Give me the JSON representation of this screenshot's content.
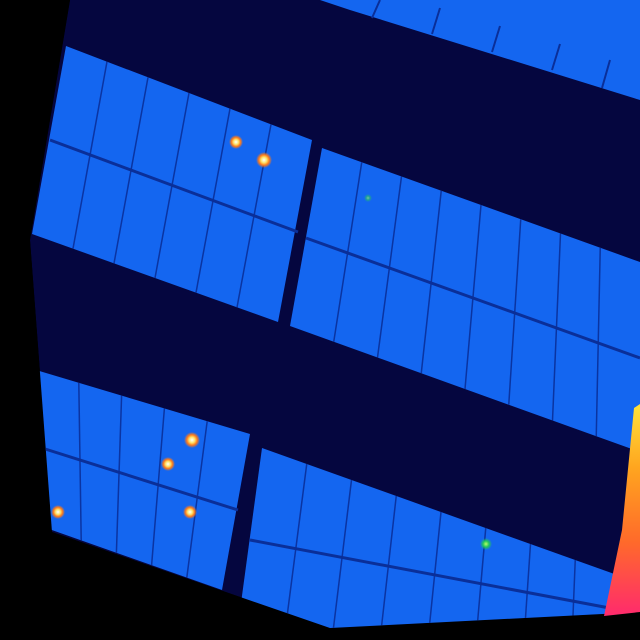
{
  "image": {
    "kind": "thermal aerial view of solar panel rows",
    "palette": {
      "background": "#000000",
      "gap": "#05063f",
      "panel": "#1466f0",
      "panel_dark": "#0f4fcf",
      "grid_line": "#0a2f99",
      "hot_core": "#ffffff",
      "hot_mid": "#ff7a1a",
      "hot_rim": "#ffd31a",
      "warm_spot": "#22c55e"
    },
    "colorbar": {
      "stops": [
        "#ff2a6d",
        "#ff6a2a",
        "#ffa51f",
        "#ffe23a"
      ]
    }
  }
}
